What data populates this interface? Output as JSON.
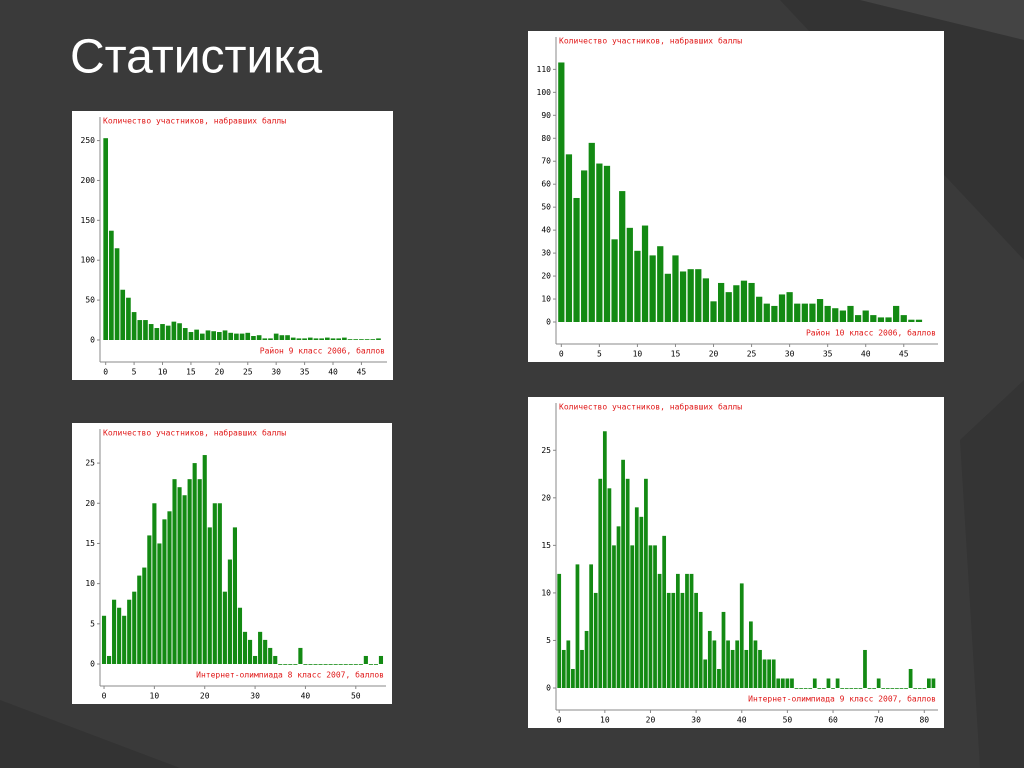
{
  "title": "Статистика",
  "chart_data": [
    {
      "type": "bar",
      "title": "Количество участников, набравших баллы",
      "xlabel": "Район 9 класс 2006, баллов",
      "color": "#138a13",
      "x": [
        0,
        1,
        2,
        3,
        4,
        5,
        6,
        7,
        8,
        9,
        10,
        11,
        12,
        13,
        14,
        15,
        16,
        17,
        18,
        19,
        20,
        21,
        22,
        23,
        24,
        25,
        26,
        27,
        28,
        29,
        30,
        31,
        32,
        33,
        34,
        35,
        36,
        37,
        38,
        39,
        40,
        41,
        42,
        43,
        44,
        45,
        46,
        47,
        48
      ],
      "values": [
        253,
        137,
        115,
        63,
        53,
        35,
        25,
        25,
        20,
        15,
        20,
        18,
        23,
        21,
        15,
        10,
        13,
        8,
        12,
        11,
        10,
        12,
        9,
        8,
        8,
        9,
        5,
        6,
        2,
        2,
        8,
        6,
        6,
        3,
        2,
        2,
        3,
        2,
        2,
        3,
        2,
        2,
        3,
        1,
        1,
        1,
        1,
        1,
        2
      ],
      "xlim": [
        -1,
        49.5
      ],
      "xticks": [
        0,
        5,
        10,
        15,
        20,
        25,
        30,
        35,
        40,
        45
      ],
      "ylim": [
        0,
        262
      ],
      "yticks": [
        0,
        50,
        100,
        150,
        200,
        250
      ]
    },
    {
      "type": "bar",
      "title": "Количество участников, набравших баллы",
      "xlabel": "Район 10 класс 2006, баллов",
      "color": "#138a13",
      "x": [
        0,
        1,
        2,
        3,
        4,
        5,
        6,
        7,
        8,
        9,
        10,
        11,
        12,
        13,
        14,
        15,
        16,
        17,
        18,
        19,
        20,
        21,
        22,
        23,
        24,
        25,
        26,
        27,
        28,
        29,
        30,
        31,
        32,
        33,
        34,
        35,
        36,
        37,
        38,
        39,
        40,
        41,
        42,
        43,
        44,
        45,
        46,
        47
      ],
      "values": [
        113,
        73,
        54,
        66,
        78,
        69,
        68,
        36,
        57,
        41,
        31,
        42,
        29,
        33,
        21,
        29,
        22,
        23,
        23,
        19,
        9,
        17,
        13,
        16,
        18,
        17,
        11,
        8,
        7,
        12,
        13,
        8,
        8,
        8,
        10,
        7,
        6,
        5,
        7,
        3,
        5,
        3,
        2,
        2,
        7,
        3,
        1,
        1
      ],
      "xlim": [
        -0.7,
        49.5
      ],
      "xticks": [
        0,
        5,
        10,
        15,
        20,
        25,
        30,
        35,
        40,
        45
      ],
      "ylim": [
        0,
        118
      ],
      "yticks": [
        0,
        10,
        20,
        30,
        40,
        50,
        60,
        70,
        80,
        90,
        100,
        110
      ]
    },
    {
      "type": "bar",
      "title": "Количество участников, набравших баллы",
      "xlabel": "Интернет-олимпиада 8 класс 2007, баллов",
      "color": "#138a13",
      "x": [
        0,
        1,
        2,
        3,
        4,
        5,
        6,
        7,
        8,
        9,
        10,
        11,
        12,
        13,
        14,
        15,
        16,
        17,
        18,
        19,
        20,
        21,
        22,
        23,
        24,
        25,
        26,
        27,
        28,
        29,
        30,
        31,
        32,
        33,
        34,
        35,
        36,
        37,
        38,
        39,
        40,
        41,
        42,
        43,
        44,
        45,
        46,
        47,
        48,
        49,
        50,
        51,
        52,
        53,
        54,
        55
      ],
      "values": [
        6,
        1,
        8,
        7,
        6,
        8,
        9,
        11,
        12,
        16,
        20,
        15,
        18,
        19,
        23,
        22,
        21,
        23,
        25,
        23,
        26,
        17,
        20,
        20,
        9,
        13,
        17,
        7,
        4,
        3,
        1,
        4,
        3,
        2,
        1,
        0,
        0,
        0,
        0,
        2,
        0,
        0,
        0,
        0,
        0,
        0,
        0,
        0,
        0,
        0,
        0,
        0,
        1,
        0,
        0,
        1
      ],
      "xlim": [
        -0.8,
        56
      ],
      "xticks": [
        0,
        10,
        20,
        30,
        40,
        50
      ],
      "ylim": [
        0,
        27.5
      ],
      "yticks": [
        0,
        5,
        10,
        15,
        20,
        25
      ]
    },
    {
      "type": "bar",
      "title": "Количество участников, набравших баллы",
      "xlabel": "Интернет-олимпиада 9 класс 2007, баллов",
      "color": "#138a13",
      "x": [
        0,
        1,
        2,
        3,
        4,
        5,
        6,
        7,
        8,
        9,
        10,
        11,
        12,
        13,
        14,
        15,
        16,
        17,
        18,
        19,
        20,
        21,
        22,
        23,
        24,
        25,
        26,
        27,
        28,
        29,
        30,
        31,
        32,
        33,
        34,
        35,
        36,
        37,
        38,
        39,
        40,
        41,
        42,
        43,
        44,
        45,
        46,
        47,
        48,
        49,
        50,
        51,
        52,
        53,
        54,
        55,
        56,
        57,
        58,
        59,
        60,
        61,
        62,
        63,
        64,
        65,
        66,
        67,
        68,
        69,
        70,
        71,
        72,
        73,
        74,
        75,
        76,
        77,
        78,
        79,
        80,
        81,
        82
      ],
      "values": [
        12,
        4,
        5,
        2,
        13,
        4,
        6,
        13,
        10,
        22,
        27,
        21,
        15,
        17,
        24,
        22,
        15,
        19,
        18,
        22,
        15,
        15,
        12,
        16,
        10,
        10,
        12,
        10,
        12,
        12,
        10,
        8,
        3,
        6,
        5,
        2,
        8,
        5,
        4,
        5,
        11,
        4,
        7,
        5,
        4,
        3,
        3,
        3,
        1,
        1,
        1,
        1,
        0,
        0,
        0,
        0,
        1,
        0,
        0,
        1,
        0,
        1,
        0,
        0,
        0,
        0,
        0,
        4,
        0,
        0,
        1,
        0,
        0,
        0,
        0,
        0,
        0,
        2,
        0,
        0,
        0,
        1,
        1
      ],
      "xlim": [
        -0.7,
        83
      ],
      "xticks": [
        0,
        10,
        20,
        30,
        40,
        50,
        60,
        70,
        80
      ],
      "ylim": [
        0,
        28.5
      ],
      "yticks": [
        0,
        5,
        10,
        15,
        20,
        25
      ]
    }
  ]
}
